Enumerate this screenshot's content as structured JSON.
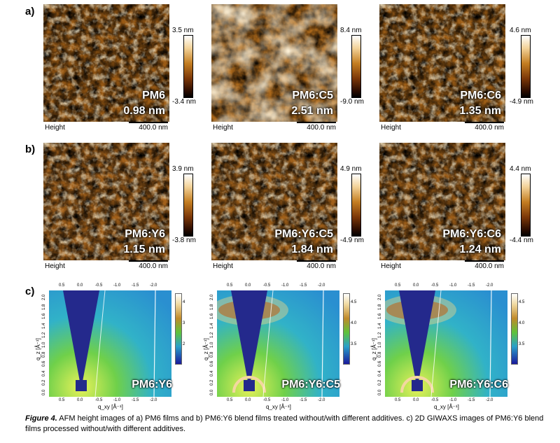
{
  "row_labels": [
    "a)",
    "b)",
    "c)"
  ],
  "afm_row_a": [
    {
      "name": "PM6",
      "rms": "0.98 nm",
      "scale_max": "3.5 nm",
      "scale_min": "-3.4 nm"
    },
    {
      "name": "PM6:C5",
      "rms": "2.51 nm",
      "scale_max": "8.4 nm",
      "scale_min": "-9.0 nm"
    },
    {
      "name": "PM6:C6",
      "rms": "1.35 nm",
      "scale_max": "4.6 nm",
      "scale_min": "-4.9 nm"
    }
  ],
  "afm_row_b": [
    {
      "name": "PM6:Y6",
      "rms": "1.15 nm",
      "scale_max": "3.9 nm",
      "scale_min": "-3.8 nm"
    },
    {
      "name": "PM6:Y6:C5",
      "rms": "1.84 nm",
      "scale_max": "4.9 nm",
      "scale_min": "-4.9 nm"
    },
    {
      "name": "PM6:Y6:C6",
      "rms": "1.24 nm",
      "scale_max": "4.4 nm",
      "scale_min": "-4.4 nm"
    }
  ],
  "afm_common": {
    "height_label": "Height",
    "scale_label": "400.0 nm"
  },
  "giwaxs": [
    {
      "name": "PM6:Y6",
      "cbar_ticks": [
        "4",
        "3",
        "2"
      ]
    },
    {
      "name": "PM6:Y6:C5",
      "cbar_ticks": [
        "4.5",
        "4.0",
        "3.5"
      ]
    },
    {
      "name": "PM6:Y6:C6",
      "cbar_ticks": [
        "4.5",
        "4.0",
        "3.5"
      ]
    }
  ],
  "giwaxs_axes": {
    "ylabel": "q_z [Å⁻¹]",
    "xlabel": "q_xy [Å⁻¹]",
    "xticks": [
      "0.5",
      "0.0",
      "-0.5",
      "-1.0",
      "-1.5",
      "-2.0"
    ],
    "yticks": [
      "0.0",
      "0.2",
      "0.4",
      "0.6",
      "0.8",
      "1.0",
      "1.2",
      "1.4",
      "1.6",
      "1.8",
      "2.0"
    ]
  },
  "caption": {
    "label": "Figure 4.",
    "text": " AFM height images of a) PM6 films and b) PM6:Y6 blend films treated without/with different additives. c) 2D GIWAXS images of PM6:Y6 blend films processed without/with different additives."
  },
  "colors": {
    "afm_high": "#ffffff",
    "afm_mid": "#c47e22",
    "afm_low": "#000000",
    "giwaxs_bg": "#2c9fd0",
    "giwaxs_wedge": "#222a8a"
  }
}
